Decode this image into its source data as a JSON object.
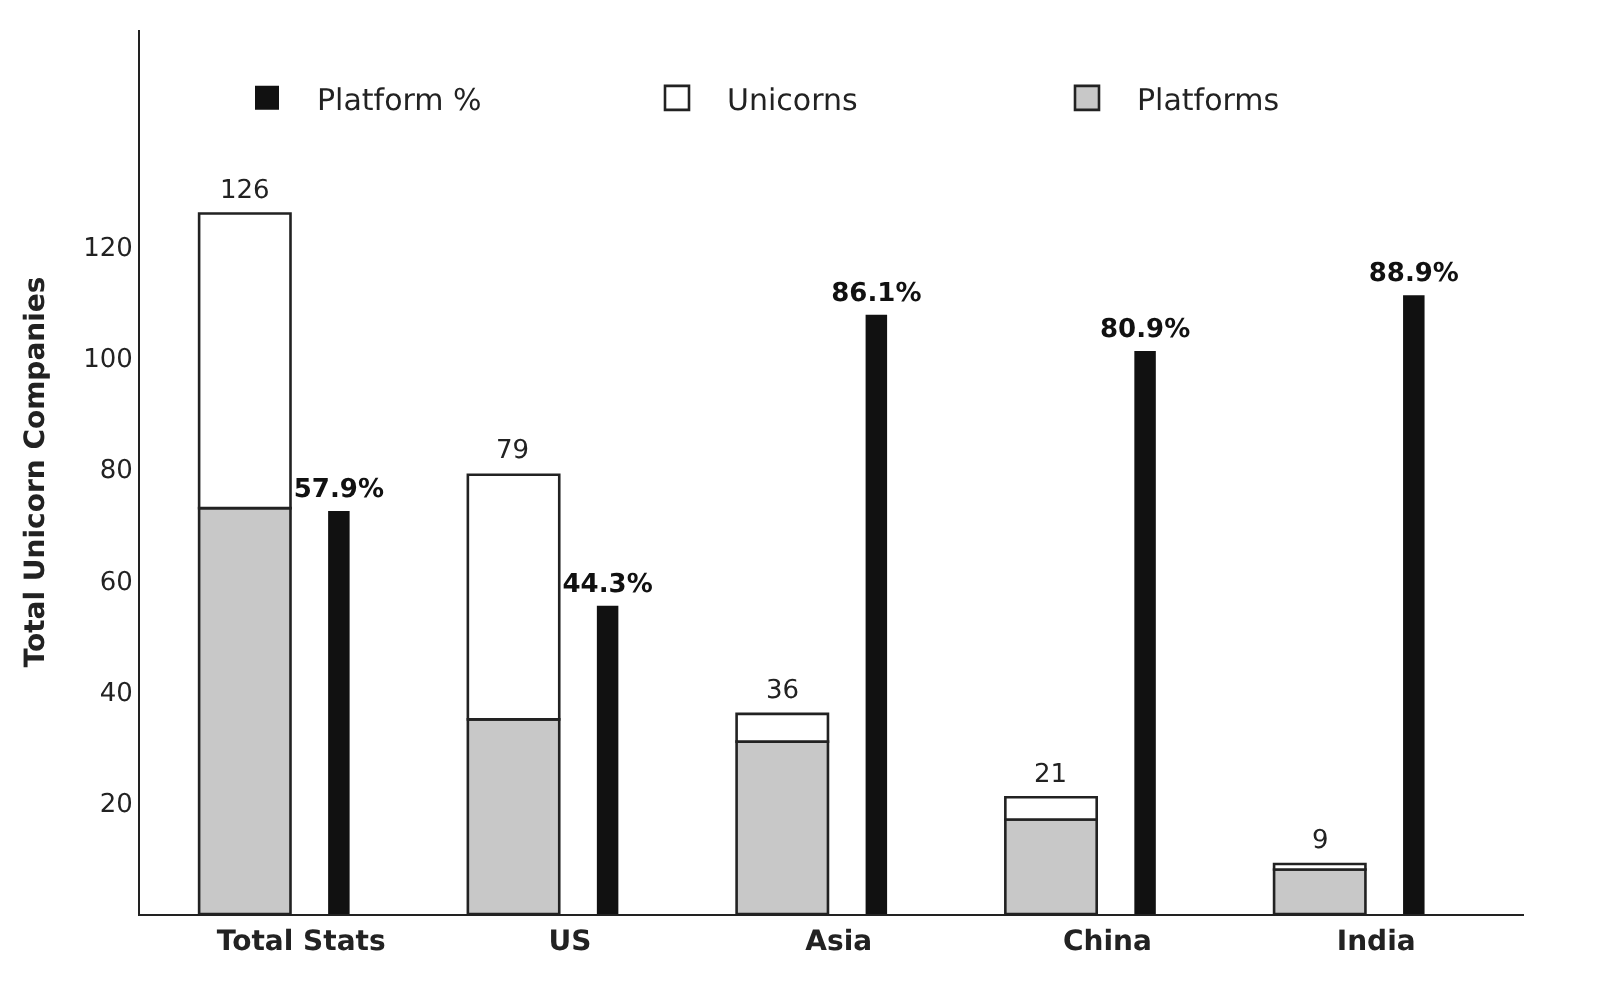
{
  "chart_data": {
    "type": "bar",
    "ylabel": "Total Unicorn Companies",
    "categories": [
      "Total Stats",
      "US",
      "Asia",
      "China",
      "India"
    ],
    "stacked": true,
    "series": [
      {
        "name": "Platforms",
        "color": "#c8c8c8",
        "values": [
          73,
          35,
          31,
          17,
          8
        ]
      },
      {
        "name": "Unicorns",
        "color": "#ffffff",
        "values": [
          53,
          44,
          5,
          4,
          1
        ]
      },
      {
        "name": "Platform %",
        "color": "#111111",
        "axis": "y2",
        "values": [
          57.9,
          44.3,
          86.1,
          80.9,
          88.9
        ],
        "value_labels": [
          "57.9%",
          "44.3%",
          "86.1%",
          "80.9%",
          "88.9%"
        ]
      }
    ],
    "totals": [
      "126",
      "79",
      "36",
      "21",
      "9"
    ],
    "ylim": [
      0,
      159
    ],
    "yticks": [
      20,
      40,
      60,
      80,
      100,
      120
    ],
    "y2lim": [
      0,
      127
    ],
    "tick_labels": "xy",
    "legend": "top"
  }
}
